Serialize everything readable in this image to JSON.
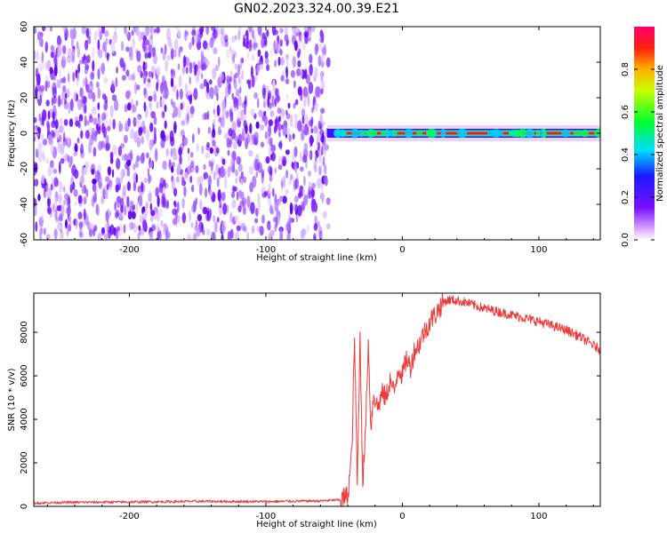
{
  "title": "GN02.2023.324.00.39.E21",
  "chart_data": [
    {
      "type": "heatmap",
      "xlabel": "Height of straight line (km)",
      "ylabel": "Frequency (Hz)",
      "xlim": [
        -270,
        145
      ],
      "ylim": [
        -60,
        60
      ],
      "xticks": [
        -200,
        -100,
        0,
        100
      ],
      "xtick_labels": [
        "-200",
        "-100",
        "0",
        "100"
      ],
      "yticks": [
        -60,
        -40,
        -20,
        0,
        20,
        40,
        60
      ],
      "ytick_labels": [
        "-60",
        "-40",
        "-20",
        "0",
        "20",
        "40",
        "60"
      ],
      "noise_region_x": [
        -270,
        -58
      ],
      "signal_band": {
        "x": [
          -55,
          145
        ],
        "frequency": 0
      },
      "colorbar": {
        "label": "Normalized spectral amplitude",
        "range": [
          0,
          1
        ],
        "ticks": [
          0.0,
          0.2,
          0.4,
          0.6,
          0.8
        ],
        "tick_labels": [
          "0.0",
          "0.2",
          "0.4",
          "0.6",
          "0.8"
        ]
      },
      "grid": false
    },
    {
      "type": "line",
      "xlabel": "Height of straight line (km)",
      "ylabel": "SNR (10 * v/v)",
      "xlim": [
        -270,
        145
      ],
      "ylim": [
        0,
        9800
      ],
      "xticks": [
        -200,
        -100,
        0,
        100
      ],
      "xtick_labels": [
        "-200",
        "-100",
        "0",
        "100"
      ],
      "yticks": [
        0,
        2000,
        4000,
        6000,
        8000
      ],
      "ytick_labels": [
        "0",
        "2000",
        "4000",
        "6000",
        "8000"
      ],
      "color": "#ee3a3a",
      "series": [
        {
          "x": [
            -270,
            -250,
            -200,
            -150,
            -100,
            -60,
            -45,
            -40,
            -37,
            -35,
            -33,
            -31,
            -29,
            -27,
            -25,
            -23,
            -21,
            -18,
            -15,
            -12,
            -9,
            -6,
            -3,
            0,
            3,
            6,
            9,
            12,
            15,
            18,
            21,
            24,
            27,
            30,
            35,
            40,
            45,
            50,
            60,
            70,
            80,
            90,
            100,
            110,
            120,
            130,
            140,
            145
          ],
          "y": [
            150,
            180,
            200,
            230,
            220,
            250,
            300,
            500,
            2500,
            7800,
            900,
            7700,
            1200,
            3400,
            7500,
            3600,
            5200,
            4500,
            5200,
            5000,
            5800,
            5200,
            6400,
            6000,
            6800,
            6400,
            7200,
            7400,
            7900,
            8200,
            8600,
            8800,
            9100,
            9400,
            9500,
            9450,
            9400,
            9300,
            9100,
            8950,
            8800,
            8650,
            8500,
            8300,
            8100,
            7800,
            7400,
            7200
          ]
        }
      ],
      "grid": false
    }
  ]
}
